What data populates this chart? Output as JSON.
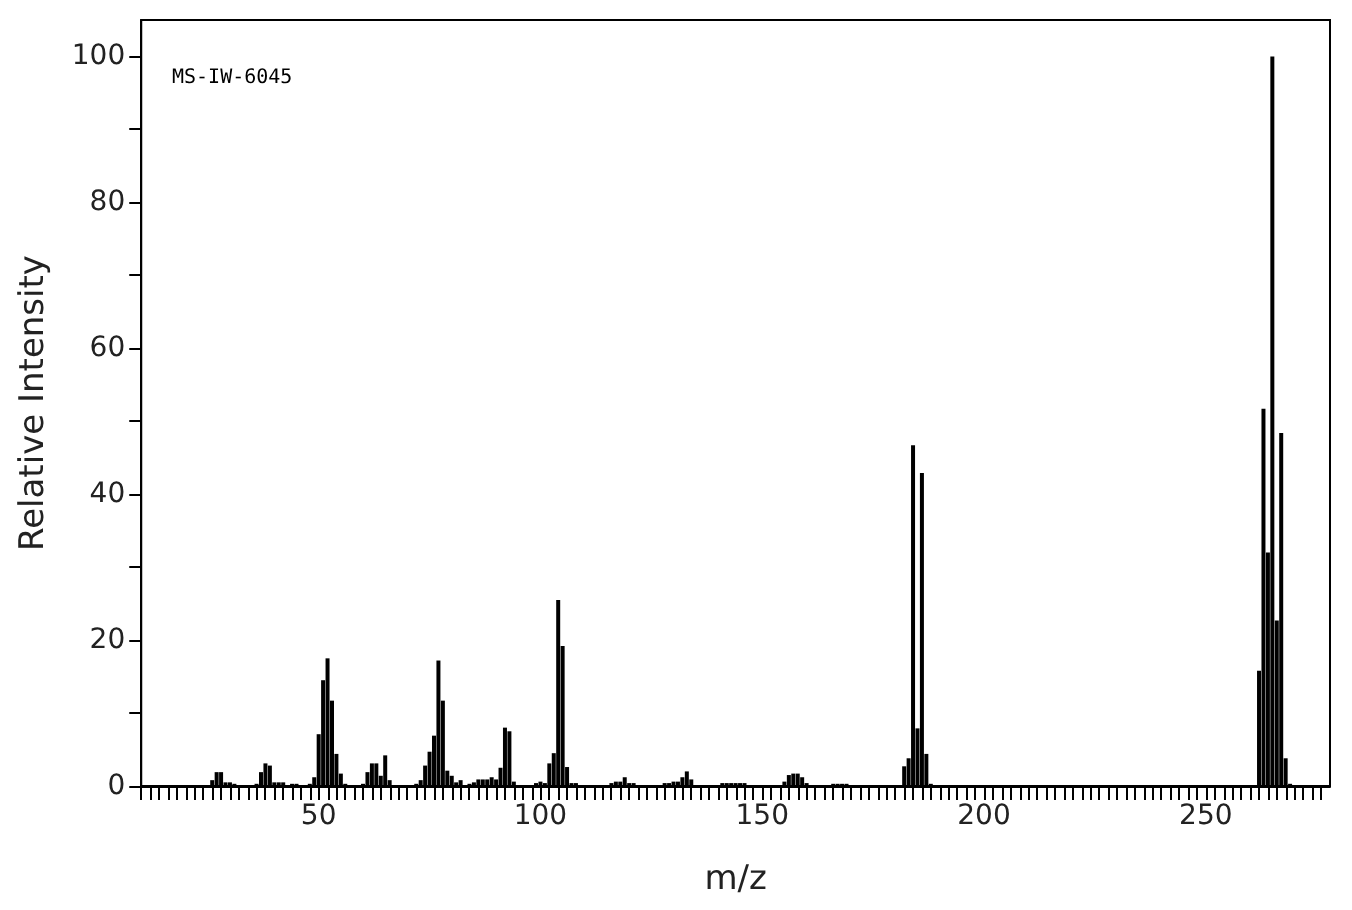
{
  "chart_data": {
    "type": "bar",
    "xlabel": "m/z",
    "ylabel": "Relative Intensity",
    "annotations": [
      "MS-IW-6045"
    ],
    "x": [
      26,
      27,
      28,
      29,
      30,
      31,
      36,
      37,
      38,
      39,
      40,
      41,
      42,
      44,
      45,
      48,
      49,
      50,
      51,
      52,
      53,
      54,
      55,
      56,
      60,
      61,
      62,
      63,
      64,
      65,
      66,
      72,
      73,
      74,
      75,
      76,
      77,
      78,
      79,
      80,
      81,
      82,
      84,
      85,
      86,
      87,
      88,
      89,
      90,
      91,
      92,
      93,
      94,
      99,
      100,
      101,
      102,
      103,
      104,
      105,
      106,
      107,
      108,
      116,
      117,
      118,
      119,
      120,
      121,
      128,
      129,
      130,
      131,
      132,
      133,
      134,
      141,
      142,
      143,
      144,
      145,
      146,
      155,
      156,
      157,
      158,
      159,
      160,
      166,
      167,
      168,
      169,
      182,
      183,
      184,
      185,
      186,
      187,
      188,
      262,
      263,
      264,
      265,
      266,
      267,
      268,
      269
    ],
    "values": [
      0.8,
      1.9,
      1.9,
      0.5,
      0.5,
      0.3,
      0.3,
      1.9,
      3.1,
      2.8,
      0.5,
      0.5,
      0.5,
      0.3,
      0.3,
      0.3,
      1.2,
      7.1,
      14.5,
      17.5,
      11.7,
      4.4,
      1.7,
      0.3,
      0.3,
      1.9,
      3.1,
      3.1,
      1.4,
      4.2,
      0.8,
      0.3,
      0.8,
      2.8,
      4.7,
      6.9,
      17.2,
      11.7,
      2.1,
      1.4,
      0.5,
      0.8,
      0.3,
      0.5,
      0.9,
      0.9,
      0.9,
      1.2,
      0.9,
      2.5,
      8.0,
      7.5,
      0.6,
      0.4,
      0.6,
      0.4,
      3.1,
      4.5,
      25.5,
      19.2,
      2.6,
      0.4,
      0.4,
      0.4,
      0.6,
      0.6,
      1.2,
      0.4,
      0.4,
      0.4,
      0.4,
      0.6,
      0.6,
      1.2,
      2.0,
      0.9,
      0.4,
      0.4,
      0.4,
      0.4,
      0.4,
      0.4,
      0.6,
      1.5,
      1.7,
      1.7,
      1.2,
      0.4,
      0.3,
      0.3,
      0.3,
      0.3,
      2.7,
      3.8,
      46.7,
      7.9,
      42.9,
      4.4,
      0.3,
      15.8,
      51.7,
      32,
      100,
      22.7,
      48.4,
      3.8,
      0.3
    ],
    "color": "#000000",
    "xlim": [
      10,
      278
    ],
    "xticks": [
      {
        "value": 10,
        "label": null
      },
      {
        "value": 12,
        "label": null
      },
      {
        "value": 14,
        "label": null
      },
      {
        "value": 16,
        "label": null
      },
      {
        "value": 18,
        "label": null
      },
      {
        "value": 20,
        "label": null
      },
      {
        "value": 22,
        "label": null
      },
      {
        "value": 24,
        "label": null
      },
      {
        "value": 26,
        "label": null
      },
      {
        "value": 28,
        "label": null
      },
      {
        "value": 30,
        "label": null
      },
      {
        "value": 32,
        "label": null
      },
      {
        "value": 34,
        "label": null
      },
      {
        "value": 36,
        "label": null
      },
      {
        "value": 38,
        "label": null
      },
      {
        "value": 40,
        "label": null
      },
      {
        "value": 42,
        "label": null
      },
      {
        "value": 44,
        "label": null
      },
      {
        "value": 46,
        "label": null
      },
      {
        "value": 48,
        "label": null
      },
      50,
      {
        "value": 52,
        "label": null
      },
      {
        "value": 54,
        "label": null
      },
      {
        "value": 56,
        "label": null
      },
      {
        "value": 58,
        "label": null
      },
      {
        "value": 60,
        "label": null
      },
      {
        "value": 62,
        "label": null
      },
      {
        "value": 64,
        "label": null
      },
      {
        "value": 66,
        "label": null
      },
      {
        "value": 68,
        "label": null
      },
      {
        "value": 70,
        "label": null
      },
      {
        "value": 72,
        "label": null
      },
      {
        "value": 74,
        "label": null
      },
      {
        "value": 76,
        "label": null
      },
      {
        "value": 78,
        "label": null
      },
      {
        "value": 80,
        "label": null
      },
      {
        "value": 82,
        "label": null
      },
      {
        "value": 84,
        "label": null
      },
      {
        "value": 86,
        "label": null
      },
      {
        "value": 88,
        "label": null
      },
      {
        "value": 90,
        "label": null
      },
      {
        "value": 92,
        "label": null
      },
      {
        "value": 94,
        "label": null
      },
      {
        "value": 96,
        "label": null
      },
      {
        "value": 98,
        "label": null
      },
      100,
      {
        "value": 102,
        "label": null
      },
      {
        "value": 104,
        "label": null
      },
      {
        "value": 106,
        "label": null
      },
      {
        "value": 108,
        "label": null
      },
      {
        "value": 110,
        "label": null
      },
      {
        "value": 112,
        "label": null
      },
      {
        "value": 114,
        "label": null
      },
      {
        "value": 116,
        "label": null
      },
      {
        "value": 118,
        "label": null
      },
      {
        "value": 120,
        "label": null
      },
      {
        "value": 122,
        "label": null
      },
      {
        "value": 124,
        "label": null
      },
      {
        "value": 126,
        "label": null
      },
      {
        "value": 128,
        "label": null
      },
      {
        "value": 130,
        "label": null
      },
      {
        "value": 132,
        "label": null
      },
      {
        "value": 134,
        "label": null
      },
      {
        "value": 136,
        "label": null
      },
      {
        "value": 138,
        "label": null
      },
      {
        "value": 140,
        "label": null
      },
      {
        "value": 142,
        "label": null
      },
      {
        "value": 144,
        "label": null
      },
      {
        "value": 146,
        "label": null
      },
      {
        "value": 148,
        "label": null
      },
      150,
      {
        "value": 152,
        "label": null
      },
      {
        "value": 154,
        "label": null
      },
      {
        "value": 156,
        "label": null
      },
      {
        "value": 158,
        "label": null
      },
      {
        "value": 160,
        "label": null
      },
      {
        "value": 162,
        "label": null
      },
      {
        "value": 164,
        "label": null
      },
      {
        "value": 166,
        "label": null
      },
      {
        "value": 168,
        "label": null
      },
      {
        "value": 170,
        "label": null
      },
      {
        "value": 172,
        "label": null
      },
      {
        "value": 174,
        "label": null
      },
      {
        "value": 176,
        "label": null
      },
      {
        "value": 178,
        "label": null
      },
      {
        "value": 180,
        "label": null
      },
      {
        "value": 182,
        "label": null
      },
      {
        "value": 184,
        "label": null
      },
      {
        "value": 186,
        "label": null
      },
      {
        "value": 188,
        "label": null
      },
      {
        "value": 190,
        "label": null
      },
      {
        "value": 192,
        "label": null
      },
      {
        "value": 194,
        "label": null
      },
      {
        "value": 196,
        "label": null
      },
      {
        "value": 198,
        "label": null
      },
      200,
      {
        "value": 202,
        "label": null
      },
      {
        "value": 204,
        "label": null
      },
      {
        "value": 206,
        "label": null
      },
      {
        "value": 208,
        "label": null
      },
      {
        "value": 210,
        "label": null
      },
      {
        "value": 212,
        "label": null
      },
      {
        "value": 214,
        "label": null
      },
      {
        "value": 216,
        "label": null
      },
      {
        "value": 218,
        "label": null
      },
      {
        "value": 220,
        "label": null
      },
      {
        "value": 222,
        "label": null
      },
      {
        "value": 224,
        "label": null
      },
      {
        "value": 226,
        "label": null
      },
      {
        "value": 228,
        "label": null
      },
      {
        "value": 230,
        "label": null
      },
      {
        "value": 232,
        "label": null
      },
      {
        "value": 234,
        "label": null
      },
      {
        "value": 236,
        "label": null
      },
      {
        "value": 238,
        "label": null
      },
      {
        "value": 240,
        "label": null
      },
      {
        "value": 242,
        "label": null
      },
      {
        "value": 244,
        "label": null
      },
      {
        "value": 246,
        "label": null
      },
      {
        "value": 248,
        "label": null
      },
      250,
      {
        "value": 252,
        "label": null
      },
      {
        "value": 254,
        "label": null
      },
      {
        "value": 256,
        "label": null
      },
      {
        "value": 258,
        "label": null
      },
      {
        "value": 260,
        "label": null
      },
      {
        "value": 262,
        "label": null
      },
      {
        "value": 264,
        "label": null
      },
      {
        "value": 266,
        "label": null
      },
      {
        "value": 268,
        "label": null
      },
      {
        "value": 270,
        "label": null
      },
      {
        "value": 272,
        "label": null
      },
      {
        "value": 274,
        "label": null
      },
      {
        "value": 276,
        "label": null
      }
    ],
    "ylim": [
      0,
      105
    ],
    "yticks": [
      0,
      {
        "value": 10,
        "label": null
      },
      20,
      {
        "value": 30,
        "label": null
      },
      40,
      {
        "value": 50,
        "label": null
      },
      60,
      {
        "value": 70,
        "label": null
      },
      80,
      {
        "value": 90,
        "label": null
      },
      100
    ],
    "grid": false
  }
}
